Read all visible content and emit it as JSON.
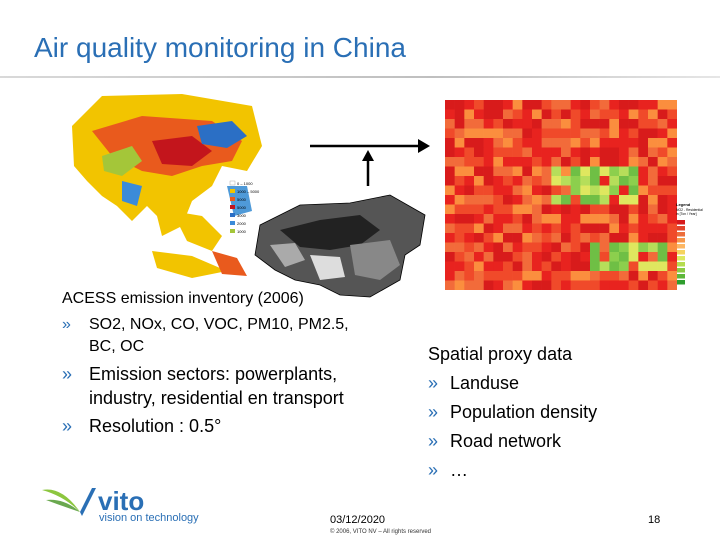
{
  "slide": {
    "title": "Air quality monitoring in China"
  },
  "left": {
    "heading": "ACESS emission inventory (2006)",
    "marker": "»",
    "bullets": [
      "SO2, NOx, CO, VOC, PM10, PM2.5, BC, OC",
      "Emission sectors: powerplants, industry, residential en transport",
      "Resolution : 0.5°"
    ]
  },
  "right": {
    "heading": "Spatial proxy data",
    "marker": "»",
    "bullets": [
      "Landuse",
      "Population density",
      "Road network",
      "…"
    ]
  },
  "asia_map_legend": [
    "0 – 1000",
    "1000 – 5000",
    "5000",
    "5000",
    "3000",
    "2000",
    "1000"
  ],
  "grid_legend": {
    "title": "Legend",
    "lines": [
      "NO2 - Residential",
      "in [Ton / Year]"
    ],
    "colors": [
      "#d7191c",
      "#e2432b",
      "#ec6d3b",
      "#f6974a",
      "#fdb764",
      "#f5d35e",
      "#dde85f",
      "#b5dc4f",
      "#8bcb43",
      "#5db73a",
      "#2e9d2e"
    ]
  },
  "footer": {
    "logo_text": "vito",
    "tagline": "vision on technology",
    "date": "03/12/2020",
    "copyright": "© 2006, VITO NV – All rights reserved",
    "page": "18"
  },
  "colors": {
    "accent": "#2a6fb5",
    "logo_green": "#8cc63f"
  }
}
